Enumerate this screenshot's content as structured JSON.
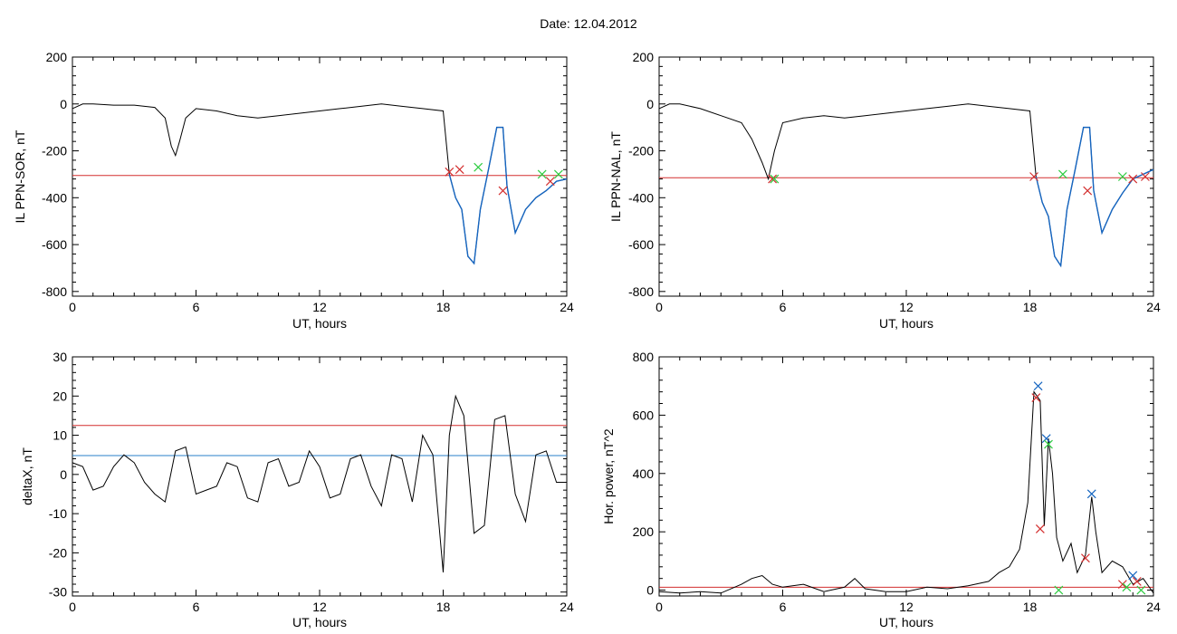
{
  "header": {
    "title": "Date:  12.04.2012"
  },
  "colors": {
    "trace": "#000000",
    "threshold_red": "#d32f2f",
    "threshold_blue": "#2a7fc9",
    "highlight_blue": "#1565c0",
    "marker_red": "#d32f2f",
    "marker_green": "#2ecc40",
    "marker_blue": "#1565c0"
  },
  "chart_data": [
    {
      "id": "sor",
      "type": "line",
      "xlabel": "UT, hours",
      "ylabel": "IL PPN-SOR, nT",
      "xlim": [
        0,
        24
      ],
      "ylim": [
        -820,
        200
      ],
      "xticks": [
        0,
        6,
        12,
        18,
        24
      ],
      "yticks": [
        200,
        0,
        -200,
        -400,
        -600,
        -800
      ],
      "grid": false,
      "series": [
        {
          "values_x": [
            0,
            0.5,
            1,
            2,
            3,
            4,
            4.5,
            4.8,
            5.0,
            5.2,
            5.5,
            6,
            7,
            8,
            9,
            10,
            11,
            12,
            13,
            14,
            15,
            16,
            17,
            18.0,
            18.3,
            18.6,
            18.9,
            19.2,
            19.5,
            19.8,
            20.2,
            20.6,
            20.9,
            21.1,
            21.5,
            22.0,
            22.5,
            23.0,
            23.5,
            24
          ],
          "values_y": [
            -20,
            0,
            0,
            -5,
            -5,
            -15,
            -60,
            -180,
            -220,
            -160,
            -60,
            -20,
            -30,
            -50,
            -60,
            -50,
            -40,
            -30,
            -20,
            -10,
            0,
            -10,
            -20,
            -30,
            -300,
            -400,
            -450,
            -650,
            -680,
            -450,
            -280,
            -100,
            -100,
            -350,
            -550,
            -450,
            -400,
            -370,
            -330,
            -320
          ]
        }
      ],
      "threshold_lines": [
        {
          "y": -305,
          "color": "red"
        }
      ],
      "highlight_range": [
        18.3,
        24
      ],
      "markers": [
        {
          "x": 18.3,
          "y": -290,
          "color": "red"
        },
        {
          "x": 18.8,
          "y": -280,
          "color": "red"
        },
        {
          "x": 19.7,
          "y": -270,
          "color": "green"
        },
        {
          "x": 20.9,
          "y": -370,
          "color": "red"
        },
        {
          "x": 22.8,
          "y": -300,
          "color": "green"
        },
        {
          "x": 23.2,
          "y": -330,
          "color": "red"
        },
        {
          "x": 23.6,
          "y": -300,
          "color": "green"
        }
      ]
    },
    {
      "id": "nal",
      "type": "line",
      "xlabel": "UT, hours",
      "ylabel": "IL PPN-NAL, nT",
      "xlim": [
        0,
        24
      ],
      "ylim": [
        -820,
        200
      ],
      "xticks": [
        0,
        6,
        12,
        18,
        24
      ],
      "yticks": [
        200,
        0,
        -200,
        -400,
        -600,
        -800
      ],
      "grid": false,
      "series": [
        {
          "values_x": [
            0,
            0.5,
            1,
            2,
            3,
            4,
            4.5,
            5.0,
            5.3,
            5.6,
            6,
            7,
            8,
            9,
            10,
            11,
            12,
            13,
            14,
            15,
            16,
            17,
            18.0,
            18.3,
            18.6,
            18.9,
            19.2,
            19.5,
            19.8,
            20.2,
            20.6,
            20.9,
            21.1,
            21.5,
            22.0,
            22.5,
            23.0,
            23.5,
            24
          ],
          "values_y": [
            -20,
            0,
            0,
            -20,
            -50,
            -80,
            -150,
            -250,
            -320,
            -200,
            -80,
            -60,
            -50,
            -60,
            -50,
            -40,
            -30,
            -20,
            -10,
            0,
            -10,
            -20,
            -30,
            -310,
            -420,
            -480,
            -650,
            -690,
            -450,
            -280,
            -100,
            -100,
            -370,
            -550,
            -450,
            -380,
            -320,
            -300,
            -280
          ]
        }
      ],
      "threshold_lines": [
        {
          "y": -315,
          "color": "red"
        }
      ],
      "highlight_range": [
        18.3,
        24
      ],
      "markers": [
        {
          "x": 5.5,
          "y": -320,
          "color": "red"
        },
        {
          "x": 5.6,
          "y": -320,
          "color": "green"
        },
        {
          "x": 18.2,
          "y": -310,
          "color": "red"
        },
        {
          "x": 19.6,
          "y": -300,
          "color": "green"
        },
        {
          "x": 20.8,
          "y": -370,
          "color": "red"
        },
        {
          "x": 22.5,
          "y": -310,
          "color": "green"
        },
        {
          "x": 23.0,
          "y": -320,
          "color": "red"
        },
        {
          "x": 23.6,
          "y": -310,
          "color": "red"
        }
      ]
    },
    {
      "id": "deltax",
      "type": "line",
      "xlabel": "UT, hours",
      "ylabel": "deltaX, nT",
      "xlim": [
        0,
        24
      ],
      "ylim": [
        -31,
        30
      ],
      "xticks": [
        0,
        6,
        12,
        18,
        24
      ],
      "yticks": [
        30,
        20,
        10,
        0,
        -10,
        -20,
        -30
      ],
      "grid": false,
      "series": [
        {
          "values_x": [
            0,
            0.5,
            1,
            1.5,
            2,
            2.5,
            3,
            3.5,
            4,
            4.5,
            5,
            5.5,
            6,
            6.5,
            7,
            7.5,
            8,
            8.5,
            9,
            9.5,
            10,
            10.5,
            11,
            11.5,
            12,
            12.5,
            13,
            13.5,
            14,
            14.5,
            15,
            15.5,
            16,
            16.5,
            17,
            17.5,
            18,
            18.3,
            18.6,
            19,
            19.5,
            20,
            20.5,
            21,
            21.5,
            22,
            22.5,
            23,
            23.5,
            24
          ],
          "values_y": [
            3,
            2,
            -4,
            -3,
            2,
            5,
            3,
            -2,
            -5,
            -7,
            6,
            7,
            -5,
            -4,
            -3,
            3,
            2,
            -6,
            -7,
            3,
            4,
            -3,
            -2,
            6,
            2,
            -6,
            -5,
            4,
            5,
            -3,
            -8,
            5,
            4,
            -7,
            10,
            5,
            -25,
            10,
            20,
            15,
            -15,
            -13,
            14,
            15,
            -5,
            -12,
            5,
            6,
            -2,
            -2
          ]
        }
      ],
      "threshold_lines": [
        {
          "y": 12.5,
          "color": "red"
        },
        {
          "y": 4.8,
          "color": "blue"
        }
      ]
    },
    {
      "id": "power",
      "type": "line",
      "xlabel": "UT, hours",
      "ylabel": "Hor. power, nT^2",
      "xlim": [
        0,
        24
      ],
      "ylim": [
        -20,
        800
      ],
      "xticks": [
        0,
        6,
        12,
        18,
        24
      ],
      "yticks": [
        800,
        600,
        400,
        200,
        0
      ],
      "grid": false,
      "series": [
        {
          "values_x": [
            0,
            1,
            2,
            3,
            4,
            4.5,
            5,
            5.5,
            6,
            7,
            8,
            9,
            9.5,
            10,
            11,
            12,
            13,
            14,
            15,
            16,
            16.5,
            17,
            17.5,
            17.9,
            18.2,
            18.5,
            18.7,
            18.9,
            19.1,
            19.3,
            19.6,
            20,
            20.3,
            20.7,
            21.0,
            21.2,
            21.5,
            22,
            22.5,
            23,
            23.5,
            24
          ],
          "values_y": [
            -5,
            -10,
            -5,
            -10,
            20,
            40,
            50,
            20,
            10,
            20,
            -5,
            10,
            40,
            5,
            -5,
            -5,
            10,
            5,
            15,
            30,
            60,
            80,
            140,
            300,
            680,
            650,
            220,
            520,
            400,
            180,
            100,
            160,
            60,
            120,
            320,
            200,
            60,
            100,
            80,
            20,
            40,
            -10
          ]
        }
      ],
      "threshold_lines": [
        {
          "y": 10,
          "color": "red"
        }
      ],
      "markers": [
        {
          "x": 18.3,
          "y": 660,
          "color": "red"
        },
        {
          "x": 18.4,
          "y": 700,
          "color": "blue"
        },
        {
          "x": 18.5,
          "y": 210,
          "color": "red"
        },
        {
          "x": 18.8,
          "y": 520,
          "color": "blue"
        },
        {
          "x": 18.9,
          "y": 500,
          "color": "green"
        },
        {
          "x": 19.4,
          "y": 0,
          "color": "green"
        },
        {
          "x": 20.7,
          "y": 110,
          "color": "red"
        },
        {
          "x": 21.0,
          "y": 330,
          "color": "blue"
        },
        {
          "x": 22.5,
          "y": 20,
          "color": "red"
        },
        {
          "x": 22.7,
          "y": 10,
          "color": "green"
        },
        {
          "x": 23.0,
          "y": 50,
          "color": "blue"
        },
        {
          "x": 23.2,
          "y": 30,
          "color": "red"
        },
        {
          "x": 23.4,
          "y": 0,
          "color": "green"
        }
      ]
    }
  ]
}
